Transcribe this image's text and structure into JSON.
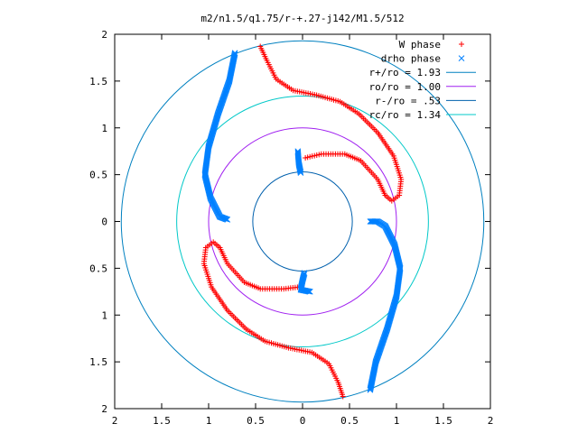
{
  "chart_data": {
    "type": "scatter",
    "title": "m2/n1.5/q1.75/r-+.27-j142/M1.5/512",
    "xlim": [
      -2,
      2
    ],
    "ylim": [
      -2,
      2
    ],
    "x_ticks": [
      -2,
      -1.5,
      -1,
      -0.5,
      0,
      0.5,
      1,
      1.5,
      2
    ],
    "y_ticks": [
      -2,
      -1.5,
      -1,
      -0.5,
      0,
      0.5,
      1,
      1.5,
      2
    ],
    "x_tick_labels": [
      "2",
      "1.5",
      "1",
      "0.5",
      "0",
      "0.5",
      "1",
      "1.5",
      "2"
    ],
    "y_tick_labels": [
      "2",
      "1.5",
      "1",
      "0.5",
      "0",
      "0.5",
      "1",
      "1.5",
      "2"
    ],
    "grid": false,
    "legend_position": "top-right",
    "series": [
      {
        "name": "W phase",
        "kind": "points",
        "marker": "plus",
        "color": "#ff0000",
        "arms": [
          [
            [
              -0.45,
              1.87
            ],
            [
              -0.38,
              1.72
            ],
            [
              -0.28,
              1.52
            ],
            [
              -0.1,
              1.4
            ],
            [
              0.15,
              1.35
            ],
            [
              0.4,
              1.28
            ],
            [
              0.6,
              1.15
            ],
            [
              0.8,
              0.95
            ],
            [
              0.97,
              0.7
            ],
            [
              1.05,
              0.45
            ],
            [
              1.03,
              0.28
            ],
            [
              0.95,
              0.22
            ],
            [
              0.88,
              0.28
            ],
            [
              0.8,
              0.45
            ],
            [
              0.62,
              0.65
            ],
            [
              0.45,
              0.72
            ],
            [
              0.2,
              0.72
            ],
            [
              0.03,
              0.68
            ]
          ],
          [
            [
              0.43,
              -1.87
            ],
            [
              0.38,
              -1.72
            ],
            [
              0.28,
              -1.52
            ],
            [
              0.1,
              -1.4
            ],
            [
              -0.15,
              -1.35
            ],
            [
              -0.4,
              -1.28
            ],
            [
              -0.6,
              -1.15
            ],
            [
              -0.8,
              -0.95
            ],
            [
              -0.97,
              -0.7
            ],
            [
              -1.05,
              -0.45
            ],
            [
              -1.03,
              -0.28
            ],
            [
              -0.95,
              -0.22
            ],
            [
              -0.88,
              -0.28
            ],
            [
              -0.8,
              -0.45
            ],
            [
              -0.62,
              -0.65
            ],
            [
              -0.45,
              -0.72
            ],
            [
              -0.2,
              -0.72
            ],
            [
              -0.03,
              -0.7
            ]
          ]
        ]
      },
      {
        "name": "drho phase",
        "kind": "points",
        "marker": "cross",
        "color": "#0080ff",
        "arms": [
          [
            [
              -0.72,
              1.8
            ],
            [
              -0.78,
              1.5
            ],
            [
              -0.9,
              1.15
            ],
            [
              -1.0,
              0.8
            ],
            [
              -1.04,
              0.5
            ],
            [
              -0.98,
              0.25
            ],
            [
              -0.88,
              0.05
            ],
            [
              -0.8,
              0.02
            ]
          ],
          [
            [
              0.72,
              -1.8
            ],
            [
              0.78,
              -1.5
            ],
            [
              0.9,
              -1.15
            ],
            [
              1.0,
              -0.8
            ],
            [
              1.04,
              -0.5
            ],
            [
              0.98,
              -0.25
            ],
            [
              0.88,
              -0.05
            ],
            [
              0.8,
              0.0
            ],
            [
              0.72,
              0.0
            ]
          ],
          [
            [
              -0.05,
              0.75
            ],
            [
              -0.04,
              0.62
            ],
            [
              -0.02,
              0.52
            ]
          ],
          [
            [
              0.02,
              -0.55
            ],
            [
              0.0,
              -0.63
            ],
            [
              -0.02,
              -0.73
            ],
            [
              0.08,
              -0.75
            ]
          ]
        ]
      },
      {
        "name": "r+/ro = 1.93",
        "kind": "circle",
        "radius": 1.93,
        "color": "#0080c0"
      },
      {
        "name": "ro/ro = 1.00",
        "kind": "circle",
        "radius": 1.0,
        "color": "#a020f0"
      },
      {
        "name": "r-/ro = .53",
        "kind": "circle",
        "radius": 0.53,
        "color": "#0060ad"
      },
      {
        "name": "rc/ro = 1.34",
        "kind": "circle",
        "radius": 1.34,
        "color": "#00c8c8"
      }
    ]
  }
}
